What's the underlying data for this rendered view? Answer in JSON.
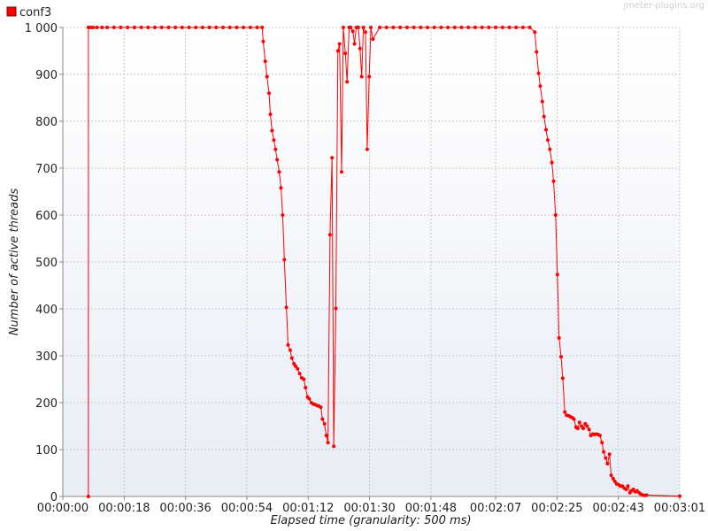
{
  "watermark": "jmeter-plugins.org",
  "chart_data": {
    "type": "line",
    "title": "",
    "xlabel": "Elapsed time (granularity: 500 ms)",
    "ylabel": "Number of active threads",
    "xlim": [
      0,
      181
    ],
    "ylim": [
      0,
      1000
    ],
    "grid": true,
    "legend_position": "top-left",
    "x_unit": "seconds",
    "x_ticks": [
      0,
      18,
      36,
      54,
      72,
      90,
      108,
      127,
      145,
      163,
      181
    ],
    "x_tick_labels": [
      "00:00:00",
      "00:00:18",
      "00:00:36",
      "00:00:54",
      "00:01:12",
      "00:01:30",
      "00:01:48",
      "00:02:07",
      "00:02:25",
      "00:02:43",
      "00:03:01"
    ],
    "y_ticks": [
      0,
      100,
      200,
      300,
      400,
      500,
      600,
      700,
      800,
      900,
      1000
    ],
    "y_tick_labels": [
      "0",
      "100",
      "200",
      "300",
      "400",
      "500",
      "600",
      "700",
      "800",
      "900",
      "1 000"
    ],
    "series": [
      {
        "name": "conf3",
        "color": "#ff0000",
        "x": [
          7.5,
          7.5,
          8.2,
          8.9,
          10.0,
          11.5,
          13,
          15,
          17,
          19,
          21,
          23,
          25,
          27,
          29,
          31,
          33,
          35,
          37,
          39,
          41,
          43,
          45,
          47,
          49,
          51,
          53,
          55,
          57,
          58.5,
          58.8,
          59.4,
          59.9,
          60.5,
          60.9,
          61.4,
          61.9,
          62.4,
          62.9,
          63.5,
          64.0,
          64.5,
          65.0,
          65.6,
          66.1,
          66.7,
          67.2,
          67.8,
          68.3,
          68.9,
          69.5,
          70.1,
          70.7,
          71.2,
          71.8,
          72.3,
          72.9,
          73.5,
          74.0,
          74.6,
          75.1,
          75.7,
          76.2,
          76.8,
          77.3,
          77.8,
          78.4,
          79.0,
          79.5,
          80.1,
          80.7,
          81.2,
          81.8,
          82.3,
          82.9,
          83.4,
          84.0,
          84.5,
          85.1,
          85.6,
          86.1,
          86.7,
          87.2,
          87.7,
          88.2,
          88.8,
          89.3,
          89.9,
          90.4,
          91,
          93,
          95,
          97,
          99,
          101,
          103,
          105,
          107,
          109,
          111,
          113,
          115,
          117,
          119,
          121,
          123,
          125,
          127,
          129,
          131,
          133,
          135,
          137,
          138.5,
          139.0,
          139.6,
          140.1,
          140.7,
          141.2,
          141.8,
          142.3,
          142.9,
          143.5,
          144.0,
          144.6,
          145.1,
          145.6,
          146.2,
          146.7,
          147.3,
          147.8,
          148.4,
          148.9,
          149.5,
          150.0,
          150.6,
          151.1,
          151.6,
          152.2,
          152.7,
          153.3,
          153.8,
          154.4,
          154.9,
          155.5,
          156.0,
          156.6,
          157.1,
          157.6,
          158.2,
          158.7,
          159.3,
          159.8,
          160.4,
          160.9,
          161.5,
          162.0,
          162.5,
          163.1,
          163.6,
          164.2,
          164.7,
          165.3,
          165.8,
          166.4,
          166.9,
          167.4,
          168.0,
          168.5,
          169.1,
          169.6,
          170.2,
          170.7,
          171.3,
          181
        ],
        "y": [
          0,
          1000,
          1000,
          1000,
          1000,
          1000,
          1000,
          1000,
          1000,
          1000,
          1000,
          1000,
          1000,
          1000,
          1000,
          1000,
          1000,
          1000,
          1000,
          1000,
          1000,
          1000,
          1000,
          1000,
          1000,
          1000,
          1000,
          1000,
          1000,
          1000,
          970,
          928,
          895,
          860,
          815,
          780,
          760,
          740,
          718,
          692,
          658,
          600,
          505,
          403,
          323,
          312,
          295,
          283,
          278,
          272,
          262,
          253,
          250,
          232,
          212,
          208,
          200,
          197,
          196,
          194,
          193,
          190,
          165,
          155,
          130,
          115,
          558,
          722,
          107,
          401,
          950,
          965,
          692,
          1000,
          945,
          884,
          1000,
          1000,
          992,
          965,
          1000,
          1000,
          955,
          895,
          1000,
          990,
          740,
          895,
          1000,
          975,
          1000,
          1000,
          1000,
          1000,
          1000,
          1000,
          1000,
          1000,
          1000,
          1000,
          1000,
          1000,
          1000,
          1000,
          1000,
          1000,
          1000,
          1000,
          1000,
          1000,
          1000,
          1000,
          1000,
          990,
          948,
          902,
          875,
          842,
          810,
          782,
          760,
          740,
          712,
          672,
          600,
          473,
          338,
          298,
          252,
          180,
          173,
          172,
          170,
          168,
          165,
          148,
          145,
          158,
          150,
          145,
          155,
          150,
          143,
          130,
          133,
          132,
          133,
          132,
          130,
          115,
          95,
          82,
          70,
          90,
          45,
          38,
          32,
          27,
          25,
          22,
          22,
          18,
          15,
          22,
          8,
          12,
          15,
          10,
          12,
          8,
          5,
          3,
          2,
          3,
          1
        ]
      }
    ]
  }
}
